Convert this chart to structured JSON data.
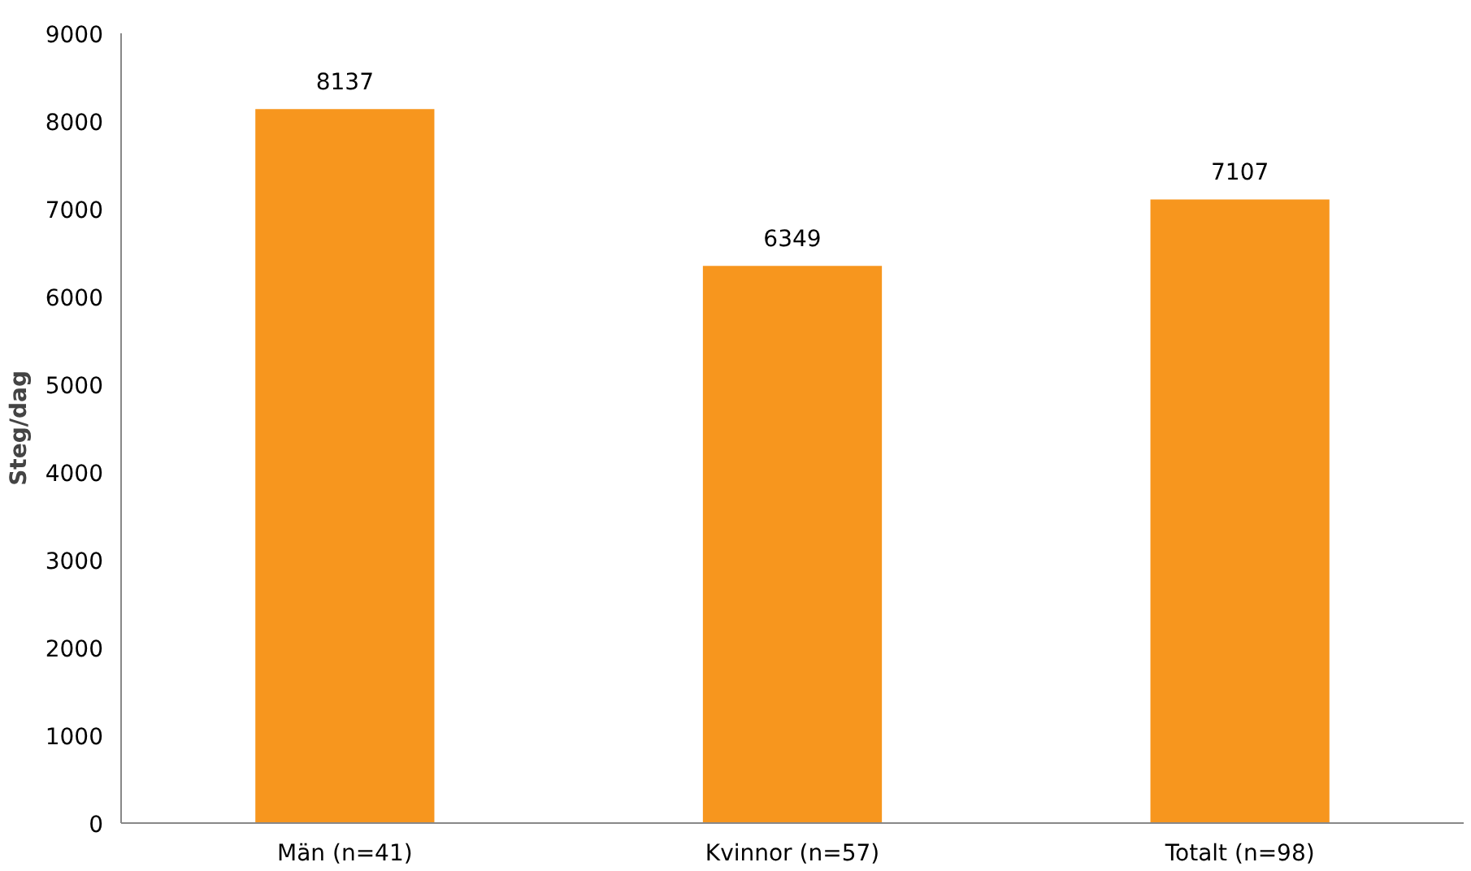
{
  "chart_data": {
    "type": "bar",
    "ylabel": "Steg/dag",
    "categories": [
      "Män (n=41)",
      "Kvinnor (n=57)",
      "Totalt (n=98)"
    ],
    "values": [
      8137,
      6349,
      7107
    ],
    "color": "#f7961e",
    "ylim": [
      0,
      9000
    ],
    "yticks": [
      0,
      1000,
      2000,
      3000,
      4000,
      5000,
      6000,
      7000,
      8000,
      9000
    ],
    "grid": false,
    "data_labels": true
  }
}
